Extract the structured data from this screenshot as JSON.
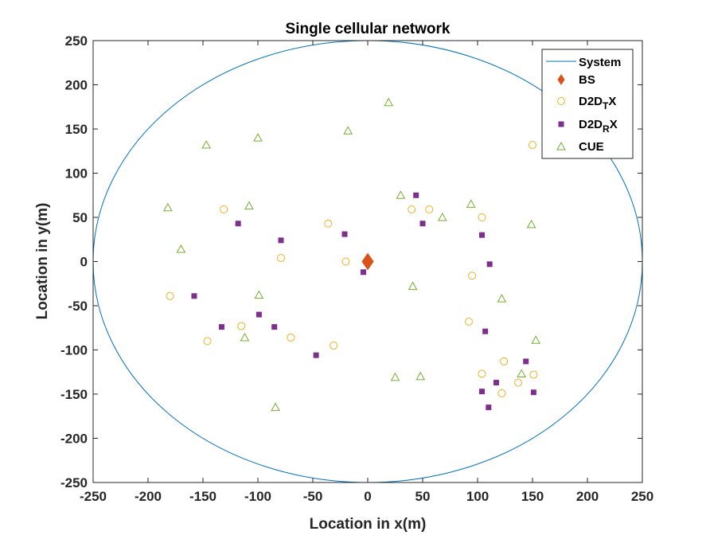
{
  "chart_data": {
    "type": "scatter",
    "title": "Single cellular network",
    "xlabel": "Location in x(m)",
    "ylabel": "Location in y(m)",
    "xlim": [
      -250,
      250
    ],
    "ylim": [
      -250,
      250
    ],
    "xticks": [
      -250,
      -200,
      -150,
      -100,
      -50,
      0,
      50,
      100,
      150,
      200,
      250
    ],
    "yticks": [
      -250,
      -200,
      -150,
      -100,
      -50,
      0,
      50,
      100,
      150,
      200,
      250
    ],
    "grid": false,
    "legend_position": "top-right",
    "system": {
      "name": "System",
      "shape": "circle",
      "center": [
        0,
        0
      ],
      "radius": 250,
      "color": "#0072BD"
    },
    "series": [
      {
        "name": "BS",
        "legend_base": "BS",
        "legend_sub": "",
        "legend_tail": "",
        "marker": "diamond",
        "color": "#D95319",
        "points": [
          [
            0,
            0
          ]
        ]
      },
      {
        "name": "D2DTX",
        "legend_base": "D2D",
        "legend_sub": "T",
        "legend_tail": "X",
        "marker": "circle",
        "color": "#EDB120",
        "points": [
          [
            -180,
            -39
          ],
          [
            -146,
            -90
          ],
          [
            -131,
            59
          ],
          [
            -115,
            -73
          ],
          [
            -79,
            4
          ],
          [
            -70,
            -86
          ],
          [
            -36,
            43
          ],
          [
            -31,
            -95
          ],
          [
            -20,
            0
          ],
          [
            40,
            59
          ],
          [
            56,
            59
          ],
          [
            92,
            -68
          ],
          [
            95,
            -16
          ],
          [
            104,
            50
          ],
          [
            104,
            -127
          ],
          [
            124,
            -113
          ],
          [
            122,
            -149
          ],
          [
            137,
            -137
          ],
          [
            150,
            132
          ],
          [
            151,
            -128
          ]
        ]
      },
      {
        "name": "D2DRX",
        "legend_base": "D2D",
        "legend_sub": "R",
        "legend_tail": "X",
        "marker": "square",
        "color": "#7E2F8E",
        "points": [
          [
            -158,
            -39
          ],
          [
            -133,
            -74
          ],
          [
            -118,
            43
          ],
          [
            -99,
            -60
          ],
          [
            -85,
            -74
          ],
          [
            -79,
            24
          ],
          [
            -47,
            -106
          ],
          [
            -21,
            31
          ],
          [
            -4,
            -12
          ],
          [
            44,
            75
          ],
          [
            50,
            43
          ],
          [
            104,
            30
          ],
          [
            107,
            -79
          ],
          [
            111,
            -3
          ],
          [
            104,
            -147
          ],
          [
            110,
            -165
          ],
          [
            117,
            -137
          ],
          [
            144,
            -113
          ],
          [
            151,
            -148
          ]
        ]
      },
      {
        "name": "CUE",
        "legend_base": "CUE",
        "legend_sub": "",
        "legend_tail": "",
        "marker": "triangle",
        "color": "#77AC30",
        "points": [
          [
            -182,
            61
          ],
          [
            -170,
            14
          ],
          [
            -147,
            132
          ],
          [
            -112,
            -86
          ],
          [
            -108,
            63
          ],
          [
            -100,
            140
          ],
          [
            -99,
            -38
          ],
          [
            -84,
            -165
          ],
          [
            -18,
            148
          ],
          [
            19,
            180
          ],
          [
            25,
            -131
          ],
          [
            30,
            75
          ],
          [
            41,
            -28
          ],
          [
            48,
            -130
          ],
          [
            68,
            50
          ],
          [
            94,
            65
          ],
          [
            122,
            -42
          ],
          [
            149,
            42
          ],
          [
            153,
            -89
          ],
          [
            140,
            -127
          ]
        ]
      }
    ]
  }
}
